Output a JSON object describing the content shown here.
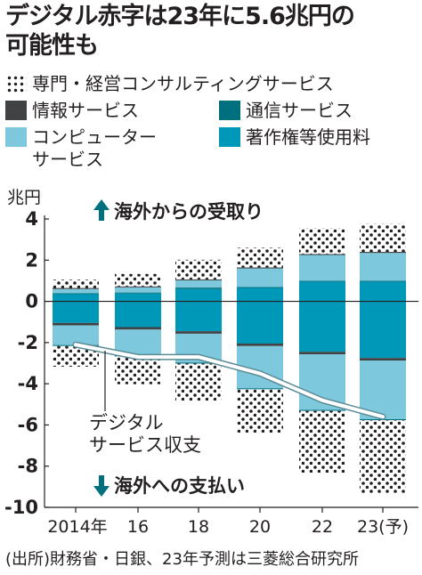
{
  "title_lines": [
    "デジタル赤字は23年に5.6兆円の",
    "可能性も"
  ],
  "legend": [
    {
      "label": "専門・経営コンサルティングサービス",
      "swatch": "dotted"
    },
    {
      "label": "情報サービス",
      "swatch": "info"
    },
    {
      "label": "通信サービス",
      "swatch": "telecom"
    },
    {
      "label": "コンピューター\nサービス",
      "swatch": "computer"
    },
    {
      "label": "著作権等使用料",
      "swatch": "ip"
    }
  ],
  "colors": {
    "dotted_bg": "#ffffff",
    "dot": "#231f20",
    "info": "#404244",
    "telecom": "#00707e",
    "computer": "#7dc8dc",
    "ip": "#0098b8",
    "balance_line_fill": "#ffffff",
    "balance_line_stroke": "#5b8c96",
    "text": "#231f20"
  },
  "chart_data": {
    "type": "bar",
    "stacked": true,
    "unit_label": "兆円",
    "categories": [
      "2014年",
      "16",
      "18",
      "20",
      "22",
      "23(予)"
    ],
    "ylim": [
      -10,
      4
    ],
    "yticks": [
      4,
      2,
      0,
      -2,
      -4,
      -6,
      -8,
      -10
    ],
    "receipts_annotation": "海外からの受取り",
    "payments_annotation": "海外への支払い",
    "receipts": [
      {
        "name": "著作権等使用料",
        "values": [
          0.35,
          0.38,
          0.6,
          0.65,
          0.95,
          0.95
        ]
      },
      {
        "name": "通信サービス",
        "values": [
          0.05,
          0.05,
          0.07,
          0.05,
          0.05,
          0.05
        ]
      },
      {
        "name": "コンピューター サービス",
        "values": [
          0.2,
          0.25,
          0.35,
          0.9,
          1.25,
          1.35
        ]
      },
      {
        "name": "情報サービス",
        "values": [
          0.05,
          0.05,
          0.05,
          0.05,
          0.05,
          0.05
        ]
      },
      {
        "name": "専門・経営コンサルティングサービス",
        "values": [
          0.4,
          0.6,
          0.95,
          0.95,
          1.25,
          1.35
        ]
      }
    ],
    "payments": [
      {
        "name": "著作権等使用料",
        "values": [
          -1.05,
          -1.25,
          -1.45,
          -2.05,
          -2.45,
          -2.75
        ]
      },
      {
        "name": "情報サービス",
        "values": [
          -0.12,
          -0.12,
          -0.12,
          -0.12,
          -0.12,
          -0.12
        ]
      },
      {
        "name": "コンピューター サービス",
        "values": [
          -0.95,
          -1.25,
          -1.4,
          -2.05,
          -2.7,
          -2.85
        ]
      },
      {
        "name": "通信サービス",
        "values": [
          -0.05,
          -0.05,
          -0.05,
          -0.05,
          -0.05,
          -0.05
        ]
      },
      {
        "name": "専門・経営コンサルティングサービス",
        "values": [
          -1.0,
          -1.35,
          -1.8,
          -2.1,
          -3.0,
          -3.55
        ]
      }
    ],
    "balance": {
      "name": "デジタル サービス収支",
      "values": [
        -2.1,
        -2.7,
        -2.7,
        -3.5,
        -4.8,
        -5.6
      ]
    },
    "balance_label_lines": [
      "デジタル",
      "サービス収支"
    ]
  },
  "source": "(出所)財務省・日銀、23年予測は三菱総合研究所"
}
